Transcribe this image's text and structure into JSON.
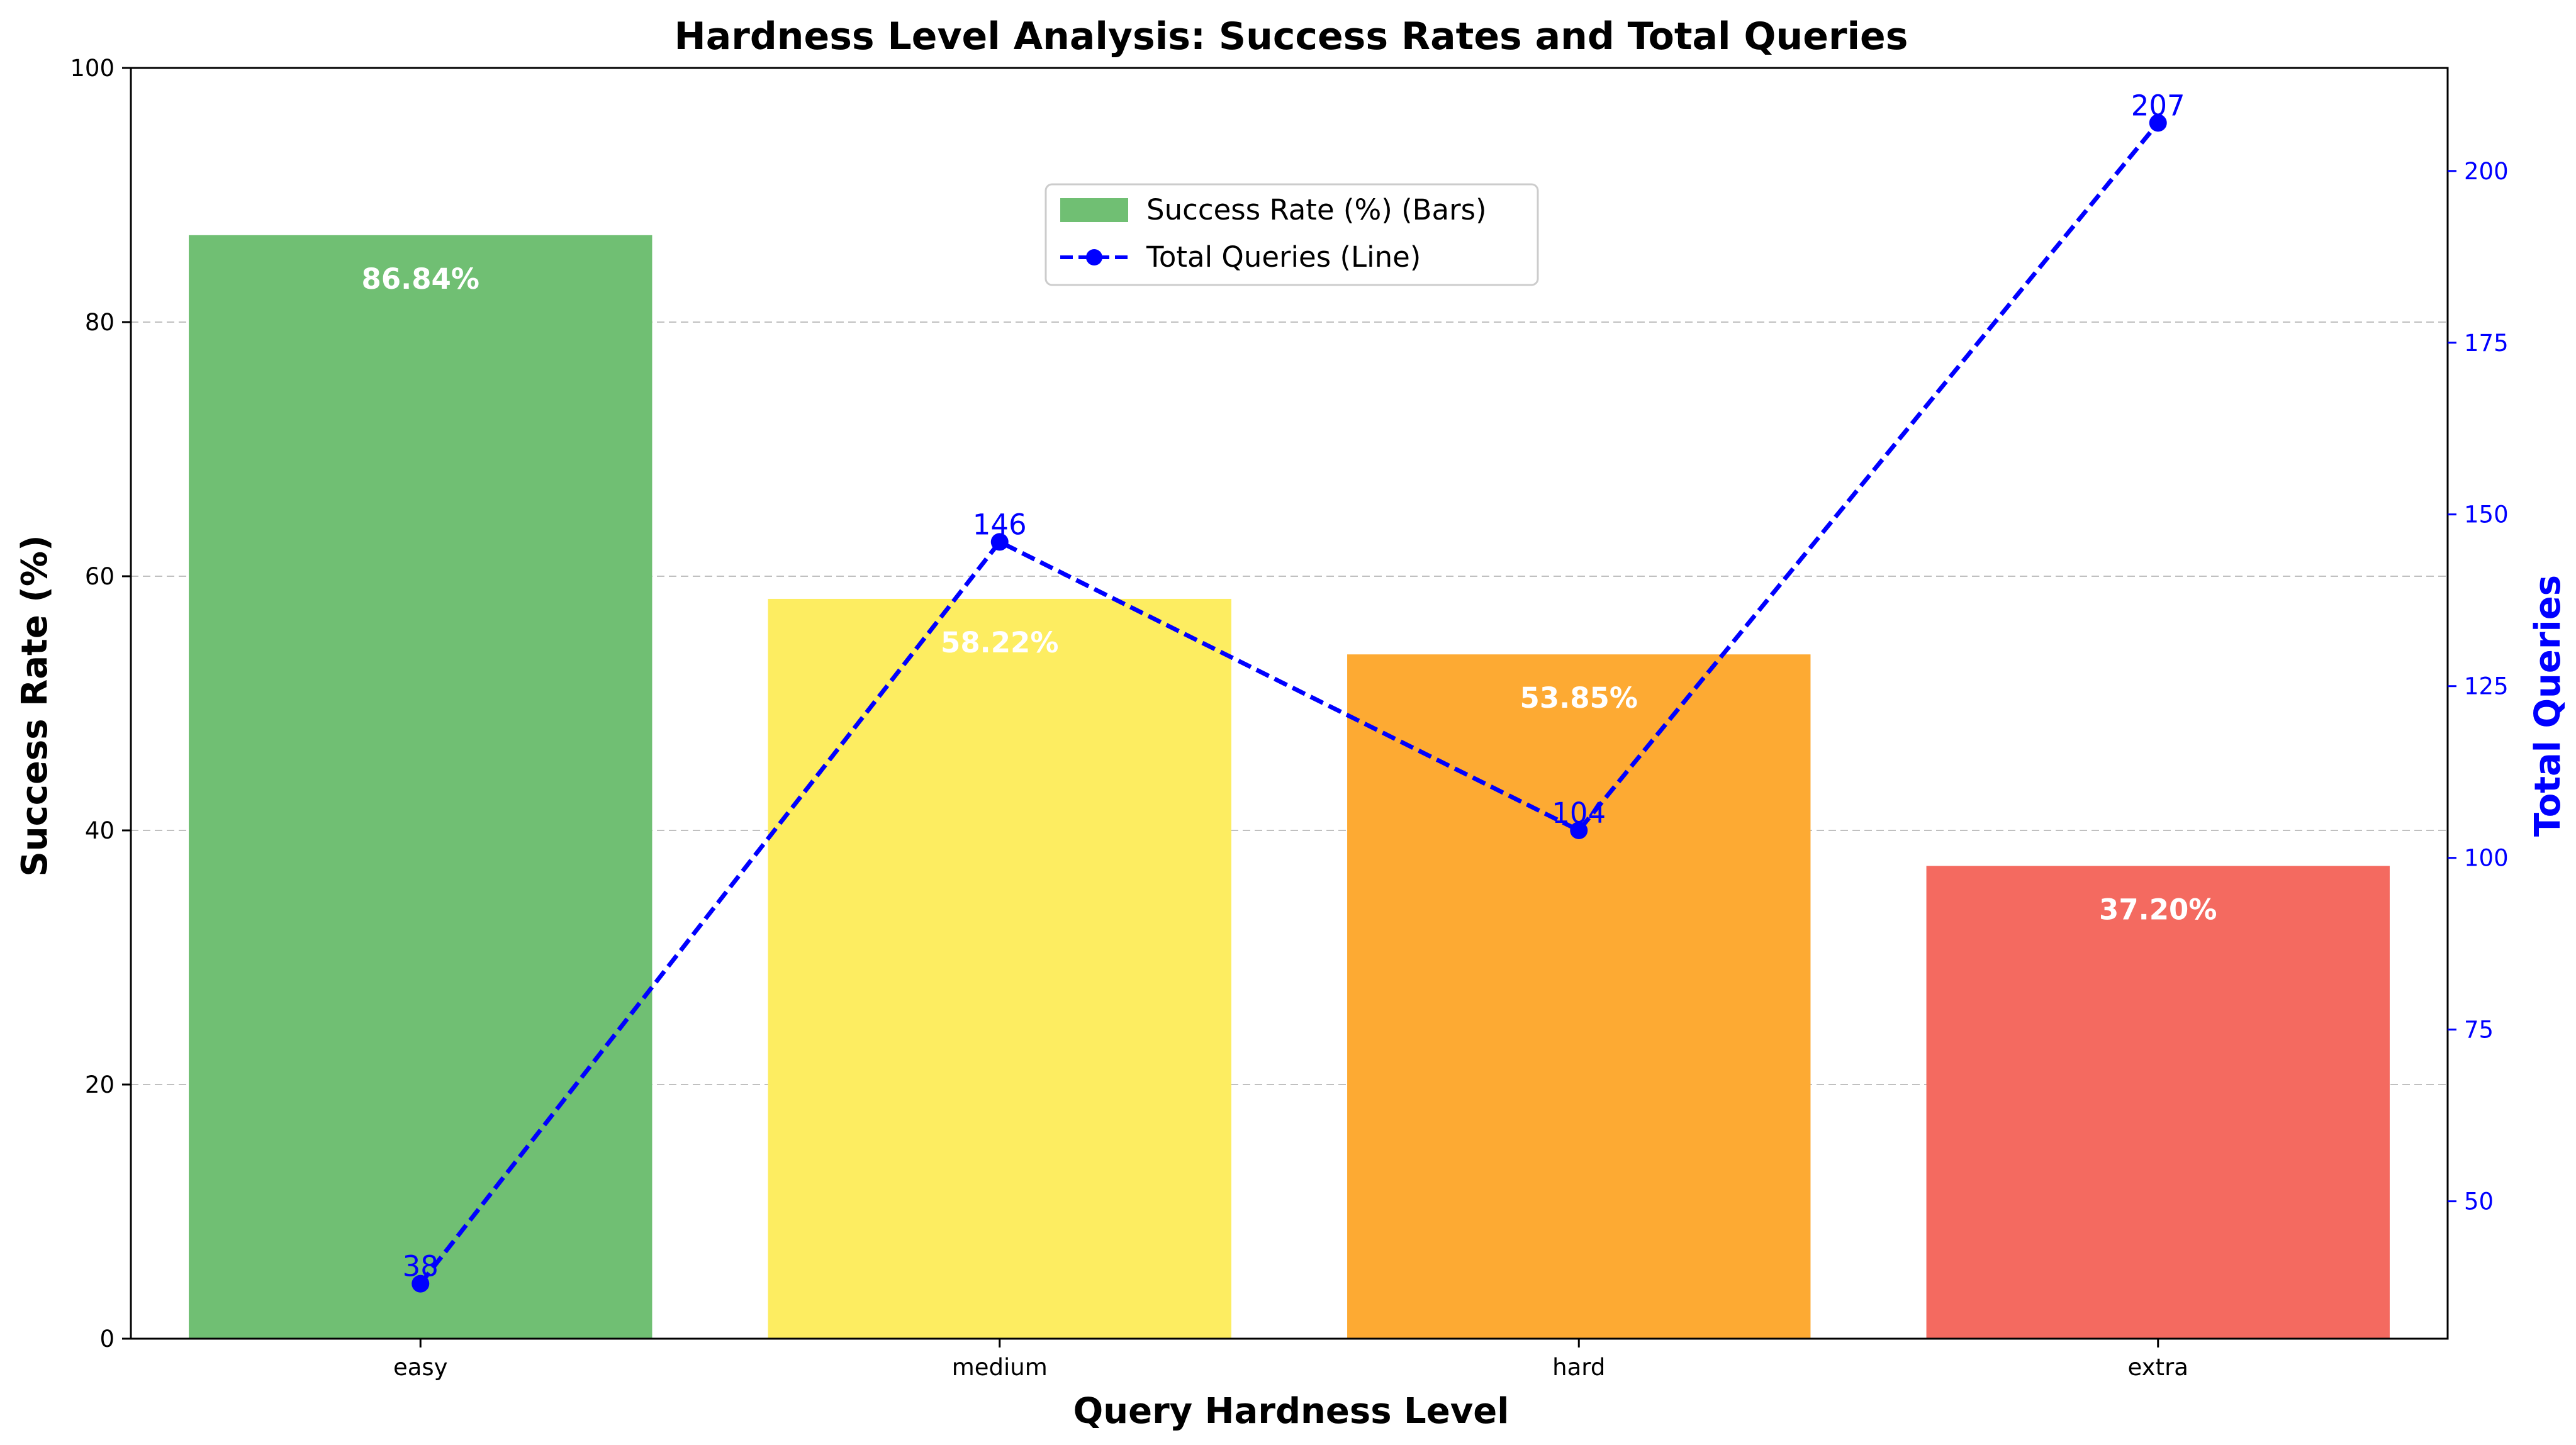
{
  "chart_data": {
    "type": "bar",
    "title": "Hardness Level Analysis: Success Rates and Total Queries",
    "xlabel": "Query Hardness Level",
    "ylabel": "Success Rate (%)",
    "y2label": "Total Queries",
    "categories": [
      "easy",
      "medium",
      "hard",
      "extra"
    ],
    "ylim": [
      0,
      100
    ],
    "yticks": [
      0,
      20,
      40,
      60,
      80,
      100
    ],
    "y2lim": [
      30,
      215
    ],
    "y2ticks": [
      50,
      75,
      100,
      125,
      150,
      175,
      200
    ],
    "grid": true,
    "legend_position": "top-center",
    "series": [
      {
        "name": "Success Rate (%) (Bars)",
        "kind": "bar",
        "axis": "left",
        "values": [
          86.84,
          58.22,
          53.85,
          37.2
        ],
        "labels": [
          "86.84%",
          "58.22%",
          "53.85%",
          "37.20%"
        ],
        "colors": [
          "#70bf73",
          "#fded61",
          "#fdaa33",
          "#f46a60"
        ]
      },
      {
        "name": "Total Queries (Line)",
        "kind": "line",
        "axis": "right",
        "style": "dashed",
        "marker": "circle",
        "color": "#0000ff",
        "values": [
          38,
          146,
          104,
          207
        ],
        "labels": [
          "38",
          "146",
          "104",
          "207"
        ]
      }
    ]
  }
}
